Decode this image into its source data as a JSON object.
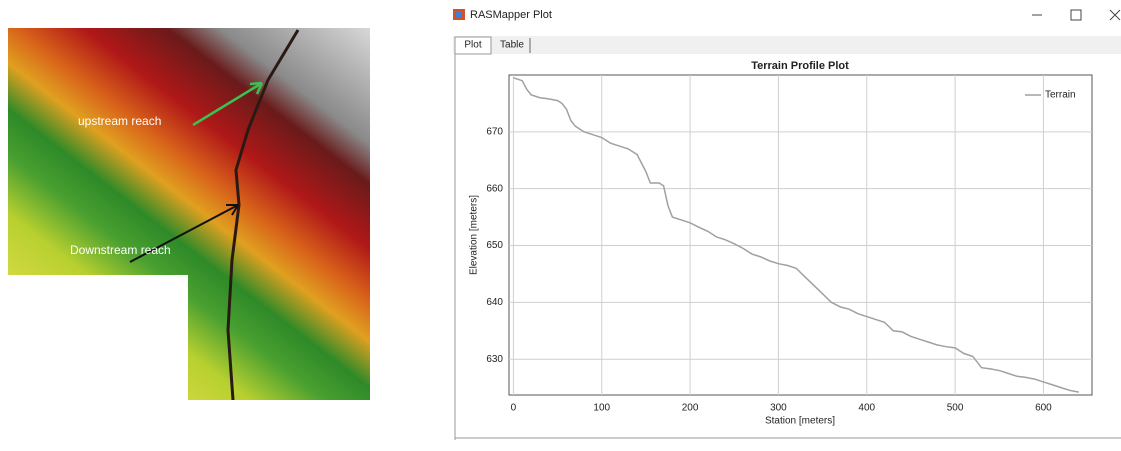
{
  "map": {
    "labels": [
      "upstream reach",
      "Downstream reach"
    ]
  },
  "window": {
    "title": "RASMapper Plot",
    "tabs": [
      "Plot",
      "Table"
    ]
  },
  "chart_data": {
    "type": "line",
    "title": "Terrain Profile Plot",
    "x_label": "Station [meters]",
    "y_label": "Elevation [meters]",
    "x": [
      0,
      10,
      15,
      20,
      30,
      40,
      50,
      55,
      60,
      65,
      70,
      80,
      90,
      100,
      110,
      120,
      130,
      140,
      145,
      150,
      155,
      165,
      170,
      175,
      180,
      190,
      200,
      210,
      220,
      230,
      240,
      250,
      260,
      270,
      280,
      290,
      300,
      310,
      320,
      330,
      340,
      350,
      360,
      370,
      380,
      390,
      400,
      410,
      420,
      430,
      440,
      450,
      460,
      470,
      480,
      490,
      500,
      510,
      520,
      530,
      540,
      550,
      560,
      570,
      580,
      590,
      600,
      610,
      620,
      630,
      640
    ],
    "series": [
      {
        "name": "Terrain",
        "color": "#a0a0a0",
        "values": [
          679.5,
          679,
          677.5,
          676.5,
          676,
          675.8,
          675.5,
          675,
          674,
          672,
          671,
          670,
          669.5,
          669,
          668,
          667.5,
          667,
          666,
          664.5,
          663,
          661,
          661,
          660.5,
          657,
          655,
          654.5,
          654,
          653.2,
          652.5,
          651.5,
          651,
          650.3,
          649.5,
          648.5,
          648,
          647.3,
          646.8,
          646.5,
          646,
          644.5,
          643,
          641.5,
          640,
          639.2,
          638.8,
          638,
          637.5,
          637,
          636.5,
          635,
          634.8,
          634,
          633.5,
          633,
          632.5,
          632.2,
          632,
          631,
          630.5,
          628.5,
          628.3,
          628,
          627.5,
          627,
          626.8,
          626.5,
          626,
          625.5,
          625,
          624.5,
          624.2
        ]
      }
    ],
    "xlim": [
      -5,
      655
    ],
    "ylim": [
      623.7,
      680
    ],
    "xticks": [
      0,
      100,
      200,
      300,
      400,
      500,
      600
    ],
    "yticks": [
      630,
      640,
      650,
      660,
      670
    ],
    "grid": true,
    "legend": "upper right"
  }
}
